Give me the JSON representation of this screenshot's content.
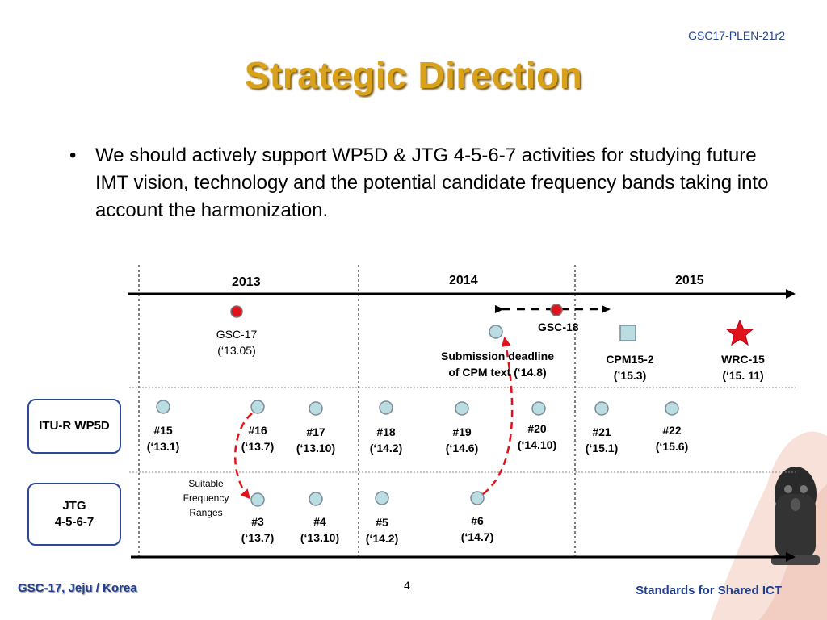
{
  "doc_id": "GSC17-PLEN-21r2",
  "title": "Strategic Direction",
  "bullet": {
    "marker": "•",
    "text": "We should actively support WP5D & JTG 4-5-6-7 activities for studying future IMT vision, technology and the potential candidate frequency bands taking into account the harmonization."
  },
  "timeline": {
    "years": [
      "2013",
      "2014",
      "2015"
    ],
    "rows": {
      "wp5d": "ITU-R WP5D",
      "jtg_line1": "JTG",
      "jtg_line2": "4-5-6-7"
    },
    "events": {
      "gsc17": {
        "name": "GSC-17",
        "date": "(‘13.05)"
      },
      "gsc18": {
        "name": "GSC-18"
      },
      "submission": {
        "line1": "Submission deadline",
        "line2": "of CPM text (‘14.8)"
      },
      "cpm": {
        "name": "CPM15-2",
        "date": "(’15.3)"
      },
      "wrc": {
        "name": "WRC-15",
        "date": "(‘15. 11)"
      }
    },
    "wp5d_meetings": [
      {
        "num": "#15",
        "date": "(‘13.1)"
      },
      {
        "num": "#16",
        "date": "(‘13.7)"
      },
      {
        "num": "#17",
        "date": "(‘13.10)"
      },
      {
        "num": "#18",
        "date": "(‘14.2)"
      },
      {
        "num": "#19",
        "date": "(‘14.6)"
      },
      {
        "num": "#20",
        "date": "(‘14.10)"
      },
      {
        "num": "#21",
        "date": "(‘15.1)"
      },
      {
        "num": "#22",
        "date": "(‘15.6)"
      }
    ],
    "jtg_meetings": [
      {
        "num": "#3",
        "date": "(‘13.7)"
      },
      {
        "num": "#4",
        "date": "(‘13.10)"
      },
      {
        "num": "#5",
        "date": "(‘14.2)"
      },
      {
        "num": "#6",
        "date": "(‘14.7)"
      }
    ],
    "annotation": {
      "line1": "Suitable",
      "line2": "Frequency",
      "line3": "Ranges"
    }
  },
  "colors": {
    "title": "#d9a21a",
    "meeting_node": "#b9dde0",
    "gsc_node": "#e0121b",
    "arrow_red": "#e0121b",
    "row_border": "#2b4a9a"
  },
  "footer": {
    "left": "GSC-17, Jeju / Korea",
    "page": "4",
    "right": "Standards for Shared ICT"
  }
}
